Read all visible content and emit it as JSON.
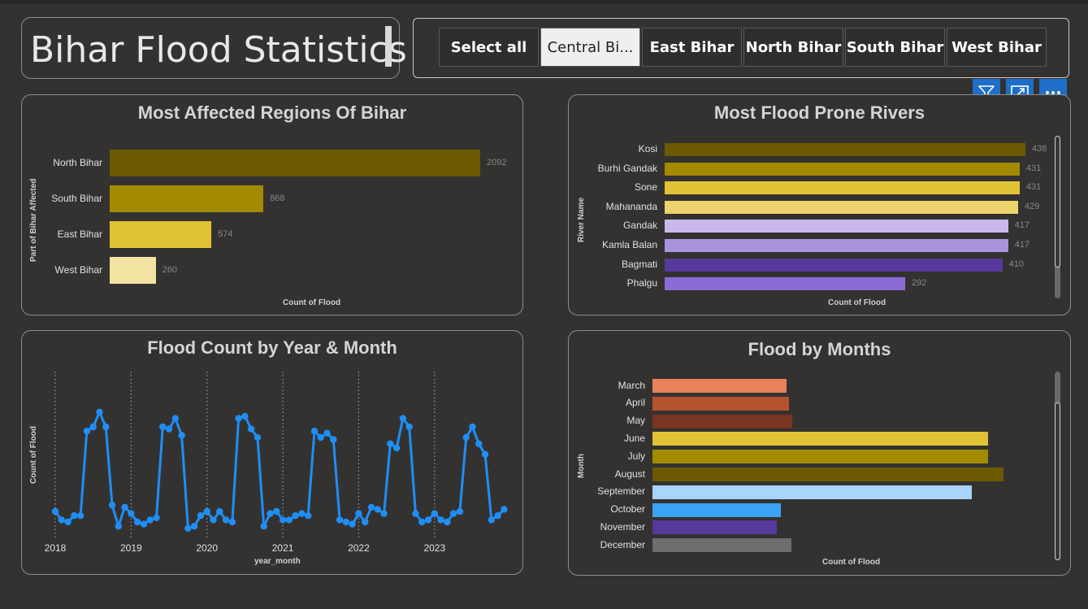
{
  "header": {
    "title": "Bihar Flood Statistics"
  },
  "slicer": {
    "options": [
      "Select all",
      "Central Bi...",
      "East Bihar",
      "North Bihar",
      "South Bihar",
      "West Bihar"
    ],
    "selected": "Central Bi..."
  },
  "toolbar": {
    "icons": [
      "filter-icon",
      "focus-mode-icon",
      "more-options-icon"
    ]
  },
  "chart_data": [
    {
      "id": "regions",
      "type": "bar",
      "orientation": "horizontal",
      "title": "Most Affected Regions Of Bihar",
      "xlabel": "Count of Flood",
      "ylabel": "Part of Bihar Affected",
      "categories": [
        "North Bihar",
        "South Bihar",
        "East Bihar",
        "West Bihar"
      ],
      "values": [
        2092,
        868,
        574,
        260
      ],
      "colors": [
        "#6b5a00",
        "#a38a00",
        "#e2c235",
        "#f2e3a0"
      ],
      "xlim": [
        0,
        2092
      ]
    },
    {
      "id": "rivers",
      "type": "bar",
      "orientation": "horizontal",
      "title": "Most Flood Prone Rivers",
      "xlabel": "Count of Flood",
      "ylabel": "River Name",
      "categories": [
        "Kosi",
        "Burhi Gandak",
        "Sone",
        "Mahananda",
        "Gandak",
        "Kamla Balan",
        "Bagmati",
        "Phalgu"
      ],
      "values": [
        438,
        431,
        431,
        429,
        417,
        417,
        410,
        292
      ],
      "colors": [
        "#6b5a00",
        "#a38a00",
        "#e2c235",
        "#ecd36b",
        "#c9b8ec",
        "#a994dc",
        "#56399a",
        "#8c6bd6"
      ],
      "xlim": [
        0,
        438
      ]
    },
    {
      "id": "timeline",
      "type": "line",
      "title": "Flood Count by Year & Month",
      "xlabel": "year_month",
      "ylabel": "Count of Flood",
      "x_ticks": [
        "2018",
        "2019",
        "2020",
        "2021",
        "2022",
        "2023"
      ],
      "color": "#1f8ef5",
      "series": [
        {
          "values": [
            10,
            6,
            5,
            8,
            8,
            48,
            50,
            57,
            50,
            13,
            3,
            12,
            9,
            5,
            4,
            6,
            7,
            50,
            49,
            54,
            46,
            2,
            3,
            8,
            10,
            6,
            10,
            6,
            5,
            54,
            55,
            49,
            45,
            3,
            9,
            10,
            6,
            6,
            8,
            9,
            8,
            48,
            45,
            47,
            44,
            6,
            5,
            4,
            9,
            5,
            12,
            11,
            9,
            42,
            40,
            54,
            50,
            9,
            5,
            6,
            9,
            6,
            5,
            9,
            10,
            45,
            50,
            42,
            37,
            6,
            8,
            11
          ]
        }
      ]
    },
    {
      "id": "months",
      "type": "bar",
      "orientation": "horizontal",
      "title": "Flood by Months",
      "xlabel": "Count of Flood",
      "ylabel": "Month",
      "categories": [
        "March",
        "April",
        "May",
        "June",
        "July",
        "August",
        "September",
        "October",
        "November",
        "December"
      ],
      "values": [
        165,
        168,
        172,
        413,
        413,
        432,
        393,
        158,
        153,
        171
      ],
      "colors": [
        "#e8825a",
        "#b5522e",
        "#7a3520",
        "#e2c235",
        "#a38a00",
        "#6b5a00",
        "#a9d4fc",
        "#3da3f5",
        "#56399a",
        "#6f6d6c"
      ],
      "xlim": [
        0,
        432
      ]
    }
  ]
}
